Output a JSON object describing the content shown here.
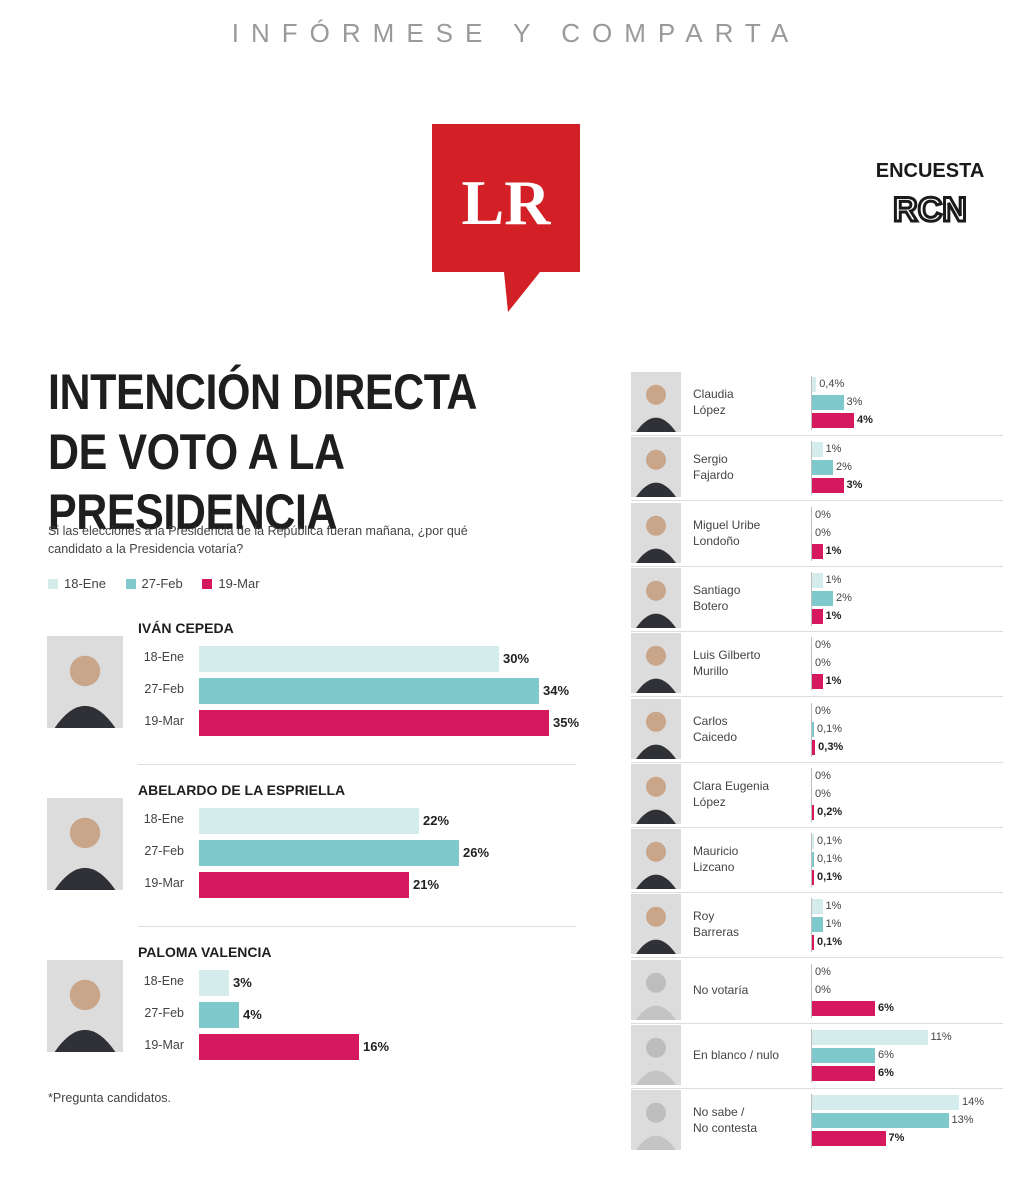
{
  "header": {
    "tagline": "INFÓRMESE Y COMPARTA"
  },
  "logo": {
    "text": "LR",
    "color": "#d32027"
  },
  "badge": {
    "label": "ENCUESTA",
    "brand": "RCN"
  },
  "chart_data": {
    "type": "bar",
    "title": "INTENCIÓN DIRECTA DE VOTO A LA PRESIDENCIA",
    "question": "Si las elecciones a la Presidencia de la República fueran mañana, ¿por qué candidato a la Presidencia votaría?",
    "footnote": "*Pregunta candidatos.",
    "series_names": [
      "18-Ene",
      "27-Feb",
      "19-Mar"
    ],
    "series_colors": [
      "#d4ecec",
      "#7fc8cc",
      "#d6185f"
    ],
    "main_candidates": [
      {
        "name": "IVÁN CEPEDA",
        "values": [
          30,
          34,
          35
        ],
        "labels": [
          "30%",
          "34%",
          "35%"
        ]
      },
      {
        "name": "ABELARDO DE LA ESPRIELLA",
        "values": [
          22,
          26,
          21
        ],
        "labels": [
          "22%",
          "26%",
          "21%"
        ]
      },
      {
        "name": "PALOMA VALENCIA",
        "values": [
          3,
          4,
          16
        ],
        "labels": [
          "3%",
          "4%",
          "16%"
        ]
      }
    ],
    "other_candidates": [
      {
        "name": [
          "Claudia",
          "López"
        ],
        "values": [
          0.4,
          3,
          4
        ],
        "labels": [
          "0,4%",
          "3%",
          "4%"
        ]
      },
      {
        "name": [
          "Sergio",
          "Fajardo"
        ],
        "values": [
          1,
          2,
          3
        ],
        "labels": [
          "1%",
          "2%",
          "3%"
        ]
      },
      {
        "name": [
          "Miguel Uribe",
          "Londoño"
        ],
        "values": [
          0,
          0,
          1
        ],
        "labels": [
          "0%",
          "0%",
          "1%"
        ]
      },
      {
        "name": [
          "Santiago",
          "Botero"
        ],
        "values": [
          1,
          2,
          1
        ],
        "labels": [
          "1%",
          "2%",
          "1%"
        ]
      },
      {
        "name": [
          "Luis Gilberto",
          "Murillo"
        ],
        "values": [
          0,
          0,
          1
        ],
        "labels": [
          "0%",
          "0%",
          "1%"
        ]
      },
      {
        "name": [
          "Carlos",
          "Caicedo"
        ],
        "values": [
          0,
          0.1,
          0.3
        ],
        "labels": [
          "0%",
          "0,1%",
          "0,3%"
        ]
      },
      {
        "name": [
          "Clara Eugenia",
          "López"
        ],
        "values": [
          0,
          0,
          0.2
        ],
        "labels": [
          "0%",
          "0%",
          "0,2%"
        ]
      },
      {
        "name": [
          "Mauricio",
          "Lizcano"
        ],
        "values": [
          0.1,
          0.1,
          0.1
        ],
        "labels": [
          "0,1%",
          "0,1%",
          "0,1%"
        ]
      },
      {
        "name": [
          "Roy",
          "Barreras"
        ],
        "values": [
          1,
          1,
          0.1
        ],
        "labels": [
          "1%",
          "1%",
          "0,1%"
        ]
      },
      {
        "name": [
          "No votaría"
        ],
        "values": [
          0,
          0,
          6
        ],
        "labels": [
          "0%",
          "0%",
          "6%"
        ]
      },
      {
        "name": [
          "En blanco / nulo"
        ],
        "values": [
          11,
          6,
          6
        ],
        "labels": [
          "11%",
          "6%",
          "6%"
        ]
      },
      {
        "name": [
          "No sabe /",
          "No contesta"
        ],
        "values": [
          14,
          13,
          7
        ],
        "labels": [
          "14%",
          "13%",
          "7%"
        ]
      }
    ]
  }
}
